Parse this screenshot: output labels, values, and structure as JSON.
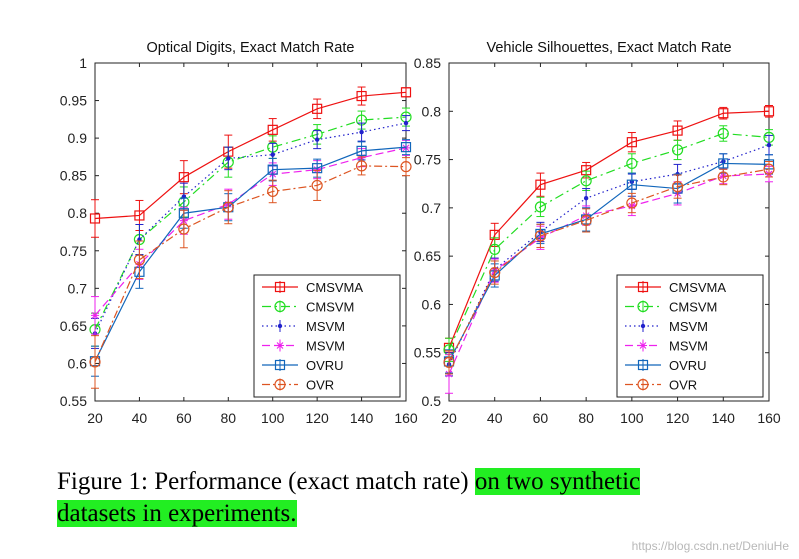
{
  "figure": {
    "caption_plain": "Figure 1: Performance (exact match rate) ",
    "caption_highlight_1": "on two synthetic",
    "caption_highlight_2": "datasets in experiments.",
    "watermark": "https://blog.csdn.net/DeniuHe",
    "highlight_color": "#22ee22"
  },
  "chart_data": [
    {
      "type": "line",
      "title": "Optical Digits, Exact Match Rate",
      "xlabel": "",
      "ylabel": "",
      "x": [
        20,
        40,
        60,
        80,
        100,
        120,
        140,
        160
      ],
      "xlim": [
        20,
        160
      ],
      "ylim": [
        0.55,
        1
      ],
      "yticks": [
        0.55,
        0.6,
        0.65,
        0.7,
        0.75,
        0.8,
        0.85,
        0.9,
        0.95,
        1
      ],
      "ytick_labels": [
        "0.55",
        "0.6",
        "0.65",
        "0.7",
        "0.75",
        "0.8",
        "0.85",
        "0.9",
        "0.95",
        "1"
      ],
      "xticks": [
        20,
        40,
        60,
        80,
        100,
        120,
        140,
        160
      ],
      "xtick_labels": [
        "20",
        "40",
        "60",
        "80",
        "100",
        "120",
        "140",
        "160"
      ],
      "legend_position": "bottom-right",
      "grid": false,
      "series": [
        {
          "name": "CMSVMA",
          "color": "#ee1111",
          "dash": "",
          "marker": "square",
          "values": [
            0.793,
            0.797,
            0.848,
            0.882,
            0.911,
            0.939,
            0.956,
            0.961
          ],
          "err": [
            0.025,
            0.02,
            0.022,
            0.022,
            0.015,
            0.013,
            0.012,
            0.006
          ]
        },
        {
          "name": "CMSVM",
          "color": "#22dd22",
          "dash": "9,4,2,4",
          "marker": "circle",
          "values": [
            0.645,
            0.765,
            0.815,
            0.868,
            0.888,
            0.905,
            0.924,
            0.928
          ],
          "err": [
            0.022,
            0.02,
            0.02,
            0.02,
            0.015,
            0.013,
            0.012,
            0.012
          ]
        },
        {
          "name": "MSVM",
          "color": "#2222cc",
          "dash": "1.5,3",
          "marker": "dot",
          "values": [
            0.64,
            0.765,
            0.822,
            0.873,
            0.878,
            0.898,
            0.908,
            0.92
          ],
          "err": [
            0.02,
            0.02,
            0.018,
            0.015,
            0.015,
            0.012,
            0.012,
            0.01
          ]
        },
        {
          "name": "MSVM",
          "color": "#ee22ee",
          "dash": "8,4",
          "marker": "star",
          "values": [
            0.664,
            0.732,
            0.79,
            0.812,
            0.852,
            0.858,
            0.874,
            0.887
          ],
          "err": [
            0.025,
            0.02,
            0.018,
            0.02,
            0.015,
            0.012,
            0.012,
            0.01
          ]
        },
        {
          "name": "OVRU",
          "color": "#1166bb",
          "dash": "",
          "marker": "square",
          "values": [
            0.603,
            0.722,
            0.8,
            0.808,
            0.858,
            0.86,
            0.883,
            0.888
          ],
          "err": [
            0.02,
            0.022,
            0.02,
            0.018,
            0.015,
            0.012,
            0.012,
            0.01
          ]
        },
        {
          "name": "OVR",
          "color": "#dd5522",
          "dash": "8,3,2,3",
          "marker": "circle",
          "values": [
            0.602,
            0.738,
            0.779,
            0.808,
            0.829,
            0.837,
            0.863,
            0.862
          ],
          "err": [
            0.035,
            0.025,
            0.025,
            0.022,
            0.015,
            0.02,
            0.012,
            0.012
          ]
        }
      ]
    },
    {
      "type": "line",
      "title": "Vehicle Silhouettes, Exact Match Rate",
      "xlabel": "",
      "ylabel": "",
      "x": [
        20,
        40,
        60,
        80,
        100,
        120,
        140,
        160
      ],
      "xlim": [
        20,
        160
      ],
      "ylim": [
        0.5,
        0.85
      ],
      "yticks": [
        0.5,
        0.55,
        0.6,
        0.65,
        0.7,
        0.75,
        0.8,
        0.85
      ],
      "ytick_labels": [
        "0.5",
        "0.55",
        "0.6",
        "0.65",
        "0.7",
        "0.75",
        "0.8",
        "0.85"
      ],
      "xticks": [
        20,
        40,
        60,
        80,
        100,
        120,
        140,
        160
      ],
      "xtick_labels": [
        "20",
        "40",
        "60",
        "80",
        "100",
        "120",
        "140",
        "160"
      ],
      "legend_position": "bottom-right",
      "grid": false,
      "series": [
        {
          "name": "CMSVMA",
          "color": "#ee1111",
          "dash": "",
          "marker": "square",
          "values": [
            0.555,
            0.672,
            0.724,
            0.739,
            0.768,
            0.78,
            0.798,
            0.8
          ],
          "err": [
            0.01,
            0.012,
            0.012,
            0.008,
            0.01,
            0.01,
            0.006,
            0.006
          ]
        },
        {
          "name": "CMSVM",
          "color": "#22dd22",
          "dash": "9,4,2,4",
          "marker": "circle",
          "values": [
            0.553,
            0.657,
            0.701,
            0.728,
            0.746,
            0.76,
            0.777,
            0.773
          ],
          "err": [
            0.012,
            0.012,
            0.01,
            0.01,
            0.01,
            0.01,
            0.008,
            0.008
          ]
        },
        {
          "name": "MSVM",
          "color": "#2222cc",
          "dash": "1.5,3",
          "marker": "dot",
          "values": [
            0.538,
            0.636,
            0.675,
            0.71,
            0.727,
            0.735,
            0.748,
            0.765
          ],
          "err": [
            0.012,
            0.012,
            0.01,
            0.01,
            0.008,
            0.01,
            0.008,
            0.01
          ]
        },
        {
          "name": "MSVM",
          "color": "#ee22ee",
          "dash": "8,4",
          "marker": "star",
          "values": [
            0.528,
            0.635,
            0.669,
            0.692,
            0.702,
            0.715,
            0.733,
            0.735
          ],
          "err": [
            0.02,
            0.012,
            0.012,
            0.01,
            0.01,
            0.012,
            0.008,
            0.008
          ]
        },
        {
          "name": "OVRU",
          "color": "#1166bb",
          "dash": "",
          "marker": "square",
          "values": [
            0.541,
            0.63,
            0.673,
            0.688,
            0.724,
            0.72,
            0.746,
            0.745
          ],
          "err": [
            0.012,
            0.012,
            0.01,
            0.012,
            0.012,
            0.015,
            0.01,
            0.01
          ]
        },
        {
          "name": "OVR",
          "color": "#dd5522",
          "dash": "8,3,2,3",
          "marker": "circle",
          "values": [
            0.54,
            0.633,
            0.671,
            0.687,
            0.705,
            0.722,
            0.732,
            0.74
          ],
          "err": [
            0.012,
            0.012,
            0.012,
            0.012,
            0.01,
            0.012,
            0.008,
            0.008
          ]
        }
      ]
    }
  ]
}
